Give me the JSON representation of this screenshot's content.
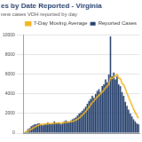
{
  "chart_data": {
    "type": "bar",
    "title": "es by Date Reported - Virginia",
    "subtitle": "new cases VDH reported by day",
    "categories": [
      null,
      null,
      null,
      null,
      null,
      null,
      null,
      null,
      null,
      null,
      null,
      null,
      null,
      null,
      null,
      null,
      null,
      null,
      null,
      null,
      null,
      null,
      null,
      null,
      null,
      null,
      null,
      null,
      null,
      null,
      null,
      null,
      null,
      null,
      null,
      null,
      null,
      null,
      null,
      null,
      null,
      null,
      null,
      null,
      null,
      null,
      null,
      null,
      null,
      null,
      null,
      null,
      null,
      null,
      null,
      null,
      null,
      null,
      null,
      null,
      null,
      null,
      null,
      null,
      null,
      null,
      null,
      null,
      null,
      null
    ],
    "series": [
      {
        "name": "Reported Cases",
        "type": "bar",
        "color": "#1f3a68",
        "values": [
          100,
          200,
          400,
          500,
          700,
          800,
          900,
          900,
          1000,
          1000,
          900,
          800,
          900,
          1000,
          1100,
          1000,
          900,
          1000,
          1200,
          1100,
          1000,
          1000,
          900,
          1100,
          1200,
          1300,
          1200,
          1100,
          1300,
          1400,
          1500,
          1600,
          1800,
          2000,
          2100,
          2300,
          2500,
          2700,
          3000,
          3300,
          3500,
          3800,
          3600,
          4000,
          4300,
          4500,
          4200,
          4800,
          5000,
          5500,
          5200,
          6000,
          9900,
          5800,
          6200,
          5500,
          5800,
          5000,
          4800,
          4200,
          3800,
          3200,
          2800,
          2400,
          2000,
          1700,
          1400,
          1200,
          1000,
          900
        ]
      },
      {
        "name": "7-Day Moving Average",
        "type": "line",
        "color": "#f2b51f",
        "values": [
          100,
          150,
          230,
          300,
          400,
          500,
          600,
          700,
          780,
          850,
          880,
          900,
          920,
          940,
          960,
          970,
          970,
          990,
          1010,
          1030,
          1040,
          1040,
          1030,
          1050,
          1070,
          1100,
          1120,
          1140,
          1170,
          1210,
          1260,
          1330,
          1430,
          1550,
          1690,
          1860,
          2040,
          2230,
          2440,
          2660,
          2900,
          3130,
          3310,
          3500,
          3690,
          3870,
          4020,
          4190,
          4390,
          4600,
          4790,
          5010,
          5640,
          5590,
          5750,
          5830,
          6000,
          5600,
          5580,
          5100,
          4940,
          4540,
          4080,
          3680,
          3270,
          2860,
          2460,
          2120,
          1800,
          1500
        ]
      }
    ],
    "ylim": [
      0,
      10000
    ],
    "yticks": [
      0,
      2000,
      4000,
      6000,
      8000,
      10000
    ],
    "grid": true,
    "legend": "top-right",
    "tick_labels": "y"
  }
}
